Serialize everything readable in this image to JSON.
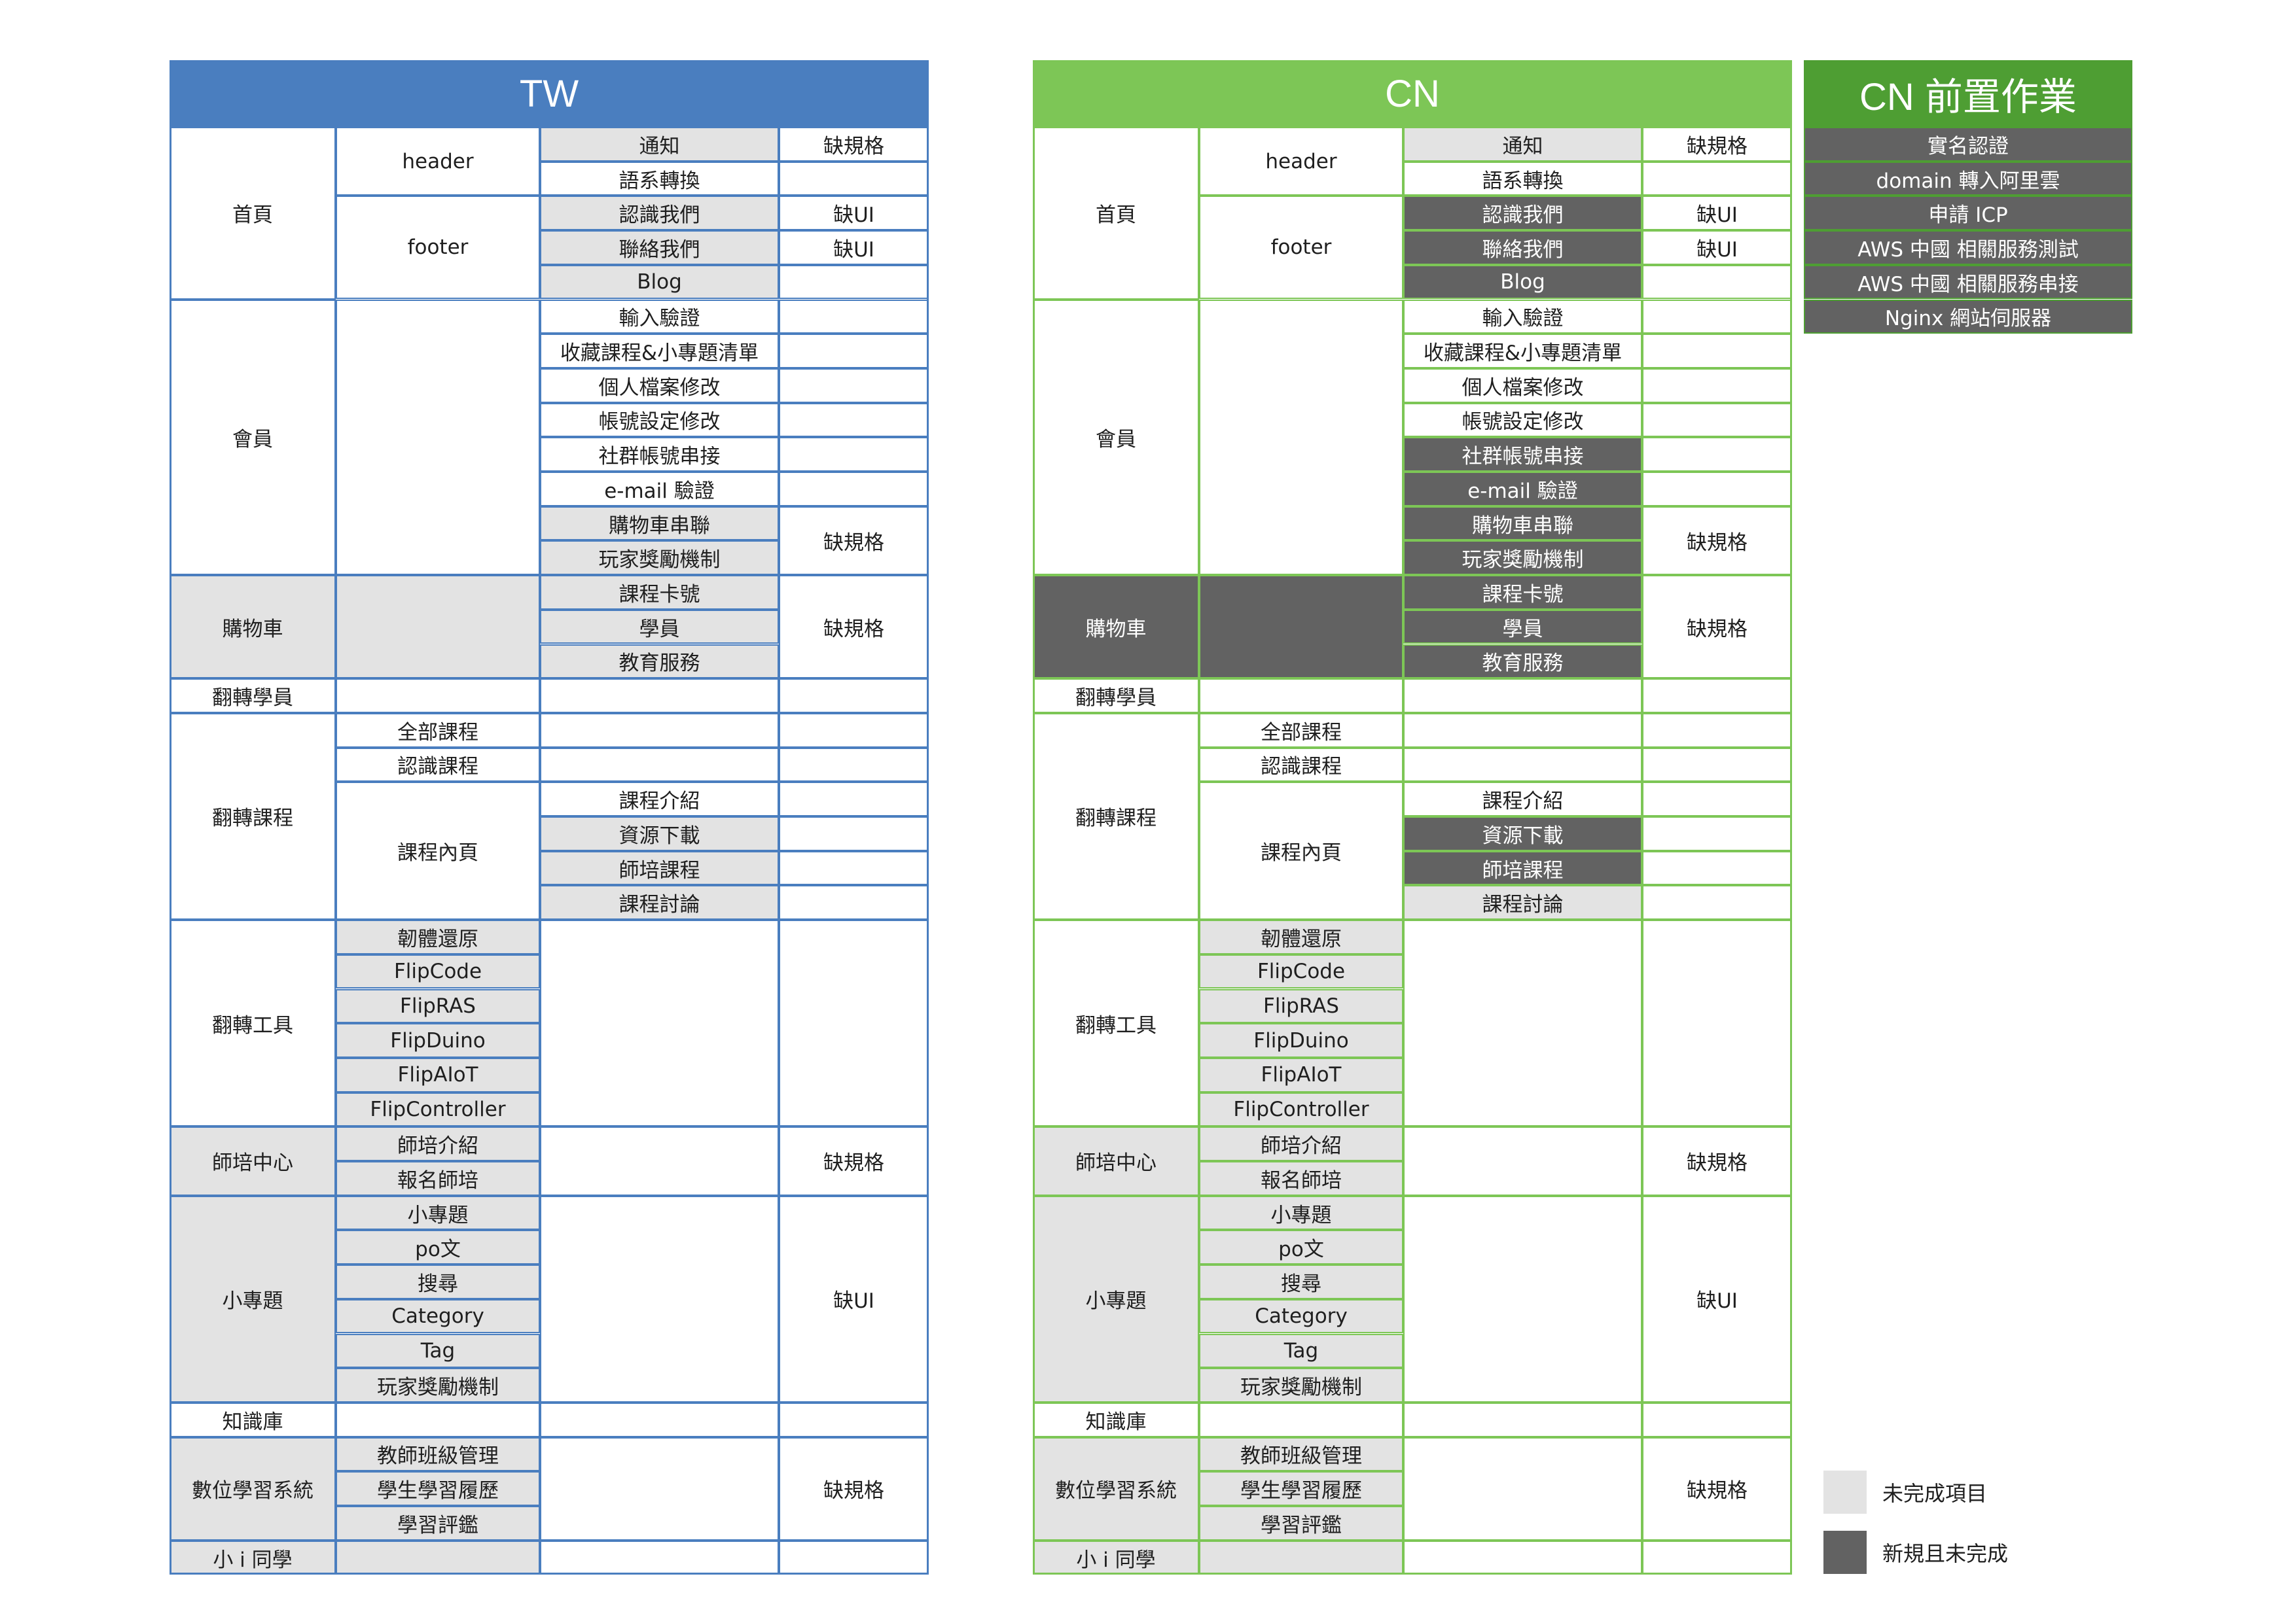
{
  "colors": {
    "tw_header": "#4a7ebf",
    "tw_line": "#4a7ebf",
    "cn_header": "#7dc656",
    "cn_line": "#7dc656",
    "cnprep_header": "#4e9e33",
    "light_fill": "#e3e3e3",
    "dark_fill": "#626262"
  },
  "tw": {
    "title": "TW"
  },
  "cn": {
    "title": "CN"
  },
  "cnprep": {
    "title": "CN 前置作業",
    "items": [
      "實名認證",
      "domain 轉入阿里雲",
      "申請 ICP",
      "AWS 中國 相關服務測試",
      "AWS 中國 相關服務串接",
      "Nginx 網站伺服器"
    ]
  },
  "legend": {
    "items": [
      {
        "label": "未完成項目",
        "swatch": "light"
      },
      {
        "label": "新規且未完成",
        "swatch": "dark"
      }
    ]
  },
  "sections": [
    {
      "name": "首頁",
      "sub": [
        {
          "name": "header",
          "items": [
            {
              "name": "通知",
              "tw": "light",
              "cn": "light"
            },
            {
              "name": "語系轉換"
            }
          ],
          "note": [
            "缺規格",
            ""
          ]
        },
        {
          "name": "footer",
          "items": [
            {
              "name": "認識我們",
              "tw": "light",
              "cn": "dark"
            },
            {
              "name": "聯絡我們",
              "tw": "light",
              "cn": "dark"
            },
            {
              "name": "Blog",
              "tw": "light",
              "cn": "dark"
            }
          ],
          "note": [
            "缺UI",
            "缺UI",
            ""
          ]
        }
      ]
    },
    {
      "name": "會員",
      "sub": [
        {
          "name": "",
          "items": [
            {
              "name": "輸入驗證"
            },
            {
              "name": "收藏課程&小專題清單"
            },
            {
              "name": "個人檔案修改"
            },
            {
              "name": "帳號設定修改"
            },
            {
              "name": "社群帳號串接",
              "cn": "dark"
            },
            {
              "name": "e-mail 驗證",
              "cn": "dark"
            },
            {
              "name": "購物車串聯",
              "tw": "light",
              "cn": "dark"
            },
            {
              "name": "玩家獎勵機制",
              "tw": "light",
              "cn": "dark"
            }
          ],
          "note": [
            "",
            "",
            "",
            "",
            "",
            "",
            "缺規格*2"
          ]
        }
      ]
    },
    {
      "name": "購物車",
      "tw": "light",
      "cn": "dark",
      "sub": [
        {
          "name": "",
          "tw": "light",
          "cn": "dark",
          "items": [
            {
              "name": "課程卡號",
              "tw": "light",
              "cn": "dark"
            },
            {
              "name": "學員",
              "tw": "light",
              "cn": "dark"
            },
            {
              "name": "教育服務",
              "tw": "light",
              "cn": "dark"
            }
          ],
          "note": [
            "缺規格*3"
          ]
        }
      ]
    },
    {
      "name": "翻轉學員",
      "sub": [
        {
          "name": "",
          "items": [
            {
              "name": ""
            }
          ],
          "note": [
            ""
          ]
        }
      ]
    },
    {
      "name": "翻轉課程",
      "sub": [
        {
          "name": "全部課程",
          "items": [
            {
              "name": ""
            }
          ],
          "note": [
            ""
          ]
        },
        {
          "name": "認識課程",
          "items": [
            {
              "name": ""
            }
          ],
          "note": [
            ""
          ]
        },
        {
          "name": "課程內頁",
          "items": [
            {
              "name": "課程介紹"
            },
            {
              "name": "資源下載",
              "tw": "light",
              "cn": "dark"
            },
            {
              "name": "師培課程",
              "tw": "light",
              "cn": "dark"
            },
            {
              "name": "課程討論",
              "tw": "light",
              "cn": "light"
            }
          ],
          "note": [
            "",
            "",
            "",
            ""
          ]
        }
      ]
    },
    {
      "name": "翻轉工具",
      "sub": [
        {
          "name": "韌體還原",
          "tw": "light",
          "cn": "light"
        },
        {
          "name": "FlipCode",
          "tw": "light",
          "cn": "light"
        },
        {
          "name": "FlipRAS",
          "tw": "light",
          "cn": "light"
        },
        {
          "name": "FlipDuino",
          "tw": "light",
          "cn": "light"
        },
        {
          "name": "FlipAIoT",
          "tw": "light",
          "cn": "light"
        },
        {
          "name": "FlipController",
          "tw": "light",
          "cn": "light"
        }
      ]
    },
    {
      "name": "師培中心",
      "tw": "light",
      "cn": "light",
      "note": "缺規格",
      "sub": [
        {
          "name": "師培介紹",
          "tw": "light",
          "cn": "light"
        },
        {
          "name": "報名師培",
          "tw": "light",
          "cn": "light"
        }
      ]
    },
    {
      "name": "小專題",
      "tw": "light",
      "cn": "light",
      "note": "缺UI",
      "sub": [
        {
          "name": "小專題",
          "tw": "light",
          "cn": "light"
        },
        {
          "name": "po文",
          "tw": "light",
          "cn": "light"
        },
        {
          "name": "搜尋",
          "tw": "light",
          "cn": "light"
        },
        {
          "name": "Category",
          "tw": "light",
          "cn": "light"
        },
        {
          "name": "Tag",
          "tw": "light",
          "cn": "light"
        },
        {
          "name": "玩家獎勵機制",
          "tw": "light",
          "cn": "light"
        }
      ]
    },
    {
      "name": "知識庫",
      "sub": [
        {
          "name": ""
        }
      ]
    },
    {
      "name": "數位學習系統",
      "tw": "light",
      "cn": "light",
      "note": "缺規格",
      "sub": [
        {
          "name": "教師班級管理",
          "tw": "light",
          "cn": "light"
        },
        {
          "name": "學生學習履歷",
          "tw": "light",
          "cn": "light"
        },
        {
          "name": "學習評鑑",
          "tw": "light",
          "cn": "light"
        }
      ]
    },
    {
      "name": "小 i 同學",
      "tw": "light",
      "cn": "light",
      "sub": [
        {
          "name": "",
          "tw": "light",
          "cn": "light"
        }
      ]
    }
  ]
}
